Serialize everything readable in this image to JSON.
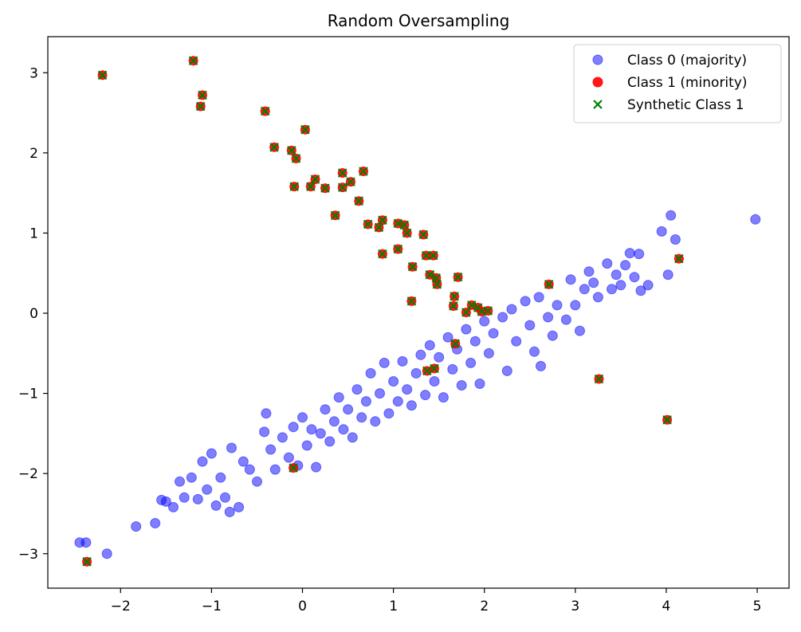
{
  "chart_data": {
    "type": "scatter",
    "title": "Random Oversampling",
    "xlabel": "",
    "ylabel": "",
    "xlim": [
      -2.8,
      5.35
    ],
    "ylim": [
      -3.43,
      3.45
    ],
    "x_ticks": [
      -2,
      -1,
      0,
      1,
      2,
      3,
      4,
      5
    ],
    "y_ticks": [
      -3,
      -2,
      -1,
      0,
      1,
      2,
      3
    ],
    "grid": false,
    "legend_position": "top-right",
    "series": [
      {
        "name": "Class 0 (majority)",
        "marker": "circle",
        "color": "#0000ff",
        "alpha": 0.5,
        "points": [
          [
            -2.45,
            -2.86
          ],
          [
            -2.38,
            -2.86
          ],
          [
            -2.15,
            -3.0
          ],
          [
            -1.83,
            -2.66
          ],
          [
            -1.62,
            -2.62
          ],
          [
            -1.55,
            -2.33
          ],
          [
            -1.5,
            -2.35
          ],
          [
            -1.42,
            -2.42
          ],
          [
            -1.35,
            -2.1
          ],
          [
            -1.3,
            -2.3
          ],
          [
            -1.22,
            -2.05
          ],
          [
            -1.15,
            -2.32
          ],
          [
            -1.1,
            -1.85
          ],
          [
            -1.05,
            -2.2
          ],
          [
            -1.0,
            -1.75
          ],
          [
            -0.95,
            -2.4
          ],
          [
            -0.9,
            -2.05
          ],
          [
            -0.85,
            -2.3
          ],
          [
            -0.8,
            -2.48
          ],
          [
            -0.78,
            -1.68
          ],
          [
            -0.7,
            -2.42
          ],
          [
            -0.65,
            -1.85
          ],
          [
            -0.58,
            -1.95
          ],
          [
            -0.5,
            -2.1
          ],
          [
            -0.42,
            -1.48
          ],
          [
            -0.4,
            -1.25
          ],
          [
            -0.35,
            -1.7
          ],
          [
            -0.3,
            -1.95
          ],
          [
            -0.22,
            -1.55
          ],
          [
            -0.15,
            -1.8
          ],
          [
            -0.1,
            -1.42
          ],
          [
            -0.05,
            -1.9
          ],
          [
            0.0,
            -1.3
          ],
          [
            0.05,
            -1.65
          ],
          [
            0.1,
            -1.45
          ],
          [
            0.15,
            -1.92
          ],
          [
            0.2,
            -1.5
          ],
          [
            0.25,
            -1.2
          ],
          [
            0.3,
            -1.6
          ],
          [
            0.35,
            -1.35
          ],
          [
            0.4,
            -1.05
          ],
          [
            0.45,
            -1.45
          ],
          [
            0.5,
            -1.2
          ],
          [
            0.55,
            -1.55
          ],
          [
            0.6,
            -0.95
          ],
          [
            0.65,
            -1.3
          ],
          [
            0.7,
            -1.1
          ],
          [
            0.75,
            -0.75
          ],
          [
            0.8,
            -1.35
          ],
          [
            0.85,
            -1.0
          ],
          [
            0.9,
            -0.62
          ],
          [
            0.95,
            -1.25
          ],
          [
            1.0,
            -0.85
          ],
          [
            1.05,
            -1.1
          ],
          [
            1.1,
            -0.6
          ],
          [
            1.15,
            -0.95
          ],
          [
            1.2,
            -1.15
          ],
          [
            1.25,
            -0.75
          ],
          [
            1.3,
            -0.52
          ],
          [
            1.35,
            -1.02
          ],
          [
            1.4,
            -0.4
          ],
          [
            1.45,
            -0.85
          ],
          [
            1.5,
            -0.55
          ],
          [
            1.55,
            -1.05
          ],
          [
            1.6,
            -0.3
          ],
          [
            1.65,
            -0.7
          ],
          [
            1.7,
            -0.45
          ],
          [
            1.75,
            -0.9
          ],
          [
            1.8,
            -0.2
          ],
          [
            1.85,
            -0.62
          ],
          [
            1.9,
            -0.35
          ],
          [
            1.95,
            -0.88
          ],
          [
            2.0,
            -0.1
          ],
          [
            2.05,
            -0.5
          ],
          [
            2.1,
            -0.25
          ],
          [
            2.2,
            -0.05
          ],
          [
            2.25,
            -0.72
          ],
          [
            2.3,
            0.05
          ],
          [
            2.35,
            -0.35
          ],
          [
            2.45,
            0.15
          ],
          [
            2.5,
            -0.15
          ],
          [
            2.55,
            -0.48
          ],
          [
            2.6,
            0.2
          ],
          [
            2.62,
            -0.66
          ],
          [
            2.7,
            -0.05
          ],
          [
            2.75,
            -0.28
          ],
          [
            2.8,
            0.1
          ],
          [
            2.9,
            -0.08
          ],
          [
            2.95,
            0.42
          ],
          [
            3.0,
            0.1
          ],
          [
            3.05,
            -0.22
          ],
          [
            3.1,
            0.3
          ],
          [
            3.15,
            0.52
          ],
          [
            3.2,
            0.38
          ],
          [
            3.25,
            0.2
          ],
          [
            3.35,
            0.62
          ],
          [
            3.4,
            0.3
          ],
          [
            3.45,
            0.48
          ],
          [
            3.5,
            0.35
          ],
          [
            3.55,
            0.6
          ],
          [
            3.6,
            0.75
          ],
          [
            3.65,
            0.45
          ],
          [
            3.7,
            0.74
          ],
          [
            3.72,
            0.28
          ],
          [
            3.8,
            0.35
          ],
          [
            3.95,
            1.02
          ],
          [
            4.02,
            0.48
          ],
          [
            4.05,
            1.22
          ],
          [
            4.1,
            0.92
          ],
          [
            4.98,
            1.17
          ]
        ]
      },
      {
        "name": "Class 1 (minority)",
        "marker": "circle",
        "color": "#ff0000",
        "alpha": 0.9,
        "points": [
          [
            -2.2,
            2.97
          ],
          [
            -1.2,
            3.15
          ],
          [
            -1.1,
            2.72
          ],
          [
            -1.12,
            2.58
          ],
          [
            -0.41,
            2.52
          ],
          [
            0.03,
            2.29
          ],
          [
            -0.31,
            2.07
          ],
          [
            -0.12,
            2.03
          ],
          [
            -0.07,
            1.93
          ],
          [
            -0.09,
            1.58
          ],
          [
            0.09,
            1.58
          ],
          [
            0.14,
            1.67
          ],
          [
            0.25,
            1.56
          ],
          [
            0.44,
            1.75
          ],
          [
            0.44,
            1.57
          ],
          [
            0.53,
            1.64
          ],
          [
            0.67,
            1.77
          ],
          [
            0.62,
            1.4
          ],
          [
            0.36,
            1.22
          ],
          [
            0.72,
            1.11
          ],
          [
            0.84,
            1.07
          ],
          [
            0.88,
            1.16
          ],
          [
            1.05,
            1.12
          ],
          [
            1.12,
            1.1
          ],
          [
            1.15,
            1.0
          ],
          [
            1.33,
            0.98
          ],
          [
            1.05,
            0.8
          ],
          [
            0.88,
            0.74
          ],
          [
            1.21,
            0.58
          ],
          [
            1.36,
            0.72
          ],
          [
            1.44,
            0.72
          ],
          [
            1.4,
            0.48
          ],
          [
            1.47,
            0.44
          ],
          [
            1.48,
            0.36
          ],
          [
            1.71,
            0.45
          ],
          [
            1.2,
            0.15
          ],
          [
            1.67,
            0.21
          ],
          [
            1.66,
            0.09
          ],
          [
            1.86,
            0.1
          ],
          [
            1.8,
            0.01
          ],
          [
            1.93,
            0.07
          ],
          [
            1.97,
            0.02
          ],
          [
            2.04,
            0.03
          ],
          [
            2.71,
            0.36
          ],
          [
            1.68,
            -0.38
          ],
          [
            1.45,
            -0.69
          ],
          [
            1.37,
            -0.72
          ],
          [
            3.26,
            -0.82
          ],
          [
            4.01,
            -1.33
          ],
          [
            4.14,
            0.68
          ],
          [
            -0.1,
            -1.93
          ],
          [
            -2.37,
            -3.1
          ]
        ]
      },
      {
        "name": "Synthetic Class 1",
        "marker": "x",
        "color": "#008000",
        "alpha": 1,
        "points": [
          [
            -2.2,
            2.97
          ],
          [
            -1.2,
            3.15
          ],
          [
            -1.1,
            2.72
          ],
          [
            -1.12,
            2.58
          ],
          [
            -0.41,
            2.52
          ],
          [
            0.03,
            2.29
          ],
          [
            -0.31,
            2.07
          ],
          [
            -0.12,
            2.03
          ],
          [
            -0.07,
            1.93
          ],
          [
            -0.09,
            1.58
          ],
          [
            0.09,
            1.58
          ],
          [
            0.14,
            1.67
          ],
          [
            0.25,
            1.56
          ],
          [
            0.44,
            1.75
          ],
          [
            0.44,
            1.57
          ],
          [
            0.53,
            1.64
          ],
          [
            0.67,
            1.77
          ],
          [
            0.62,
            1.4
          ],
          [
            0.36,
            1.22
          ],
          [
            0.72,
            1.11
          ],
          [
            0.84,
            1.07
          ],
          [
            0.88,
            1.16
          ],
          [
            1.05,
            1.12
          ],
          [
            1.12,
            1.1
          ],
          [
            1.15,
            1.0
          ],
          [
            1.33,
            0.98
          ],
          [
            1.05,
            0.8
          ],
          [
            0.88,
            0.74
          ],
          [
            1.21,
            0.58
          ],
          [
            1.36,
            0.72
          ],
          [
            1.44,
            0.72
          ],
          [
            1.4,
            0.48
          ],
          [
            1.47,
            0.44
          ],
          [
            1.48,
            0.36
          ],
          [
            1.71,
            0.45
          ],
          [
            1.2,
            0.15
          ],
          [
            1.67,
            0.21
          ],
          [
            1.66,
            0.09
          ],
          [
            1.86,
            0.1
          ],
          [
            1.8,
            0.01
          ],
          [
            1.93,
            0.07
          ],
          [
            1.97,
            0.02
          ],
          [
            2.04,
            0.03
          ],
          [
            2.71,
            0.36
          ],
          [
            1.68,
            -0.38
          ],
          [
            1.45,
            -0.69
          ],
          [
            1.37,
            -0.72
          ],
          [
            3.26,
            -0.82
          ],
          [
            4.01,
            -1.33
          ],
          [
            4.14,
            0.68
          ],
          [
            -0.1,
            -1.93
          ],
          [
            -2.37,
            -3.1
          ]
        ]
      }
    ]
  }
}
